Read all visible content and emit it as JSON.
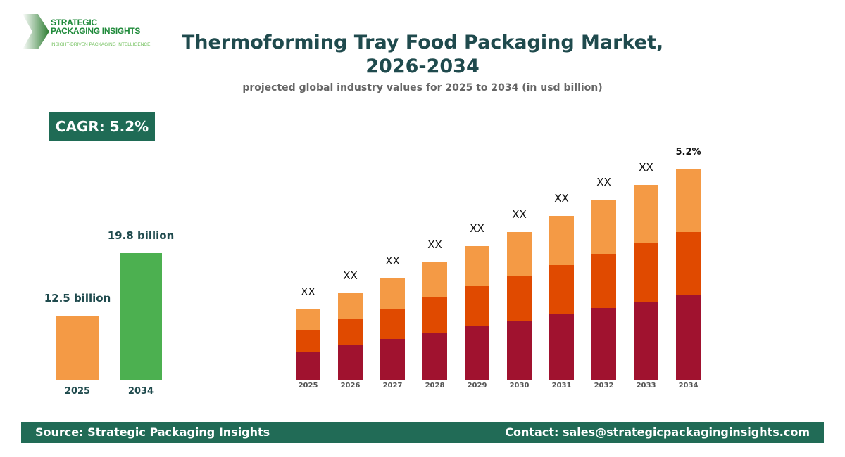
{
  "logo": {
    "line1": "STRATEGIC",
    "line2": "PACKAGING INSIGHTS",
    "tagline": "INSIGHT-DRIVEN PACKAGING INTELLIGENCE"
  },
  "header": {
    "title_line1": "Thermoforming Tray Food Packaging Market,",
    "title_line2": "2026-2034",
    "subtitle": "projected global industry values for 2025 to 2034 (in usd billion)"
  },
  "cagr_badge": "CAGR: 5.2%",
  "footer": {
    "source": "Source: Strategic Packaging Insights",
    "contact": "Contact: sales@strategicpackaginginsights.com"
  },
  "colors": {
    "segment_bottom": "#a0122f",
    "segment_middle": "#e04a00",
    "segment_top": "#f49a45",
    "bar_2025": "#f49a45",
    "bar_2034": "#4cb050",
    "brand": "#216b56"
  },
  "chart_data": [
    {
      "type": "bar",
      "categories": [
        "2025",
        "2034"
      ],
      "values": [
        12.5,
        19.8
      ],
      "data_labels": [
        "12.5 billion",
        "19.8 billion"
      ],
      "colors": [
        "#f49a45",
        "#4cb050"
      ]
    },
    {
      "type": "bar",
      "stacked": true,
      "categories": [
        "2025",
        "2026",
        "2027",
        "2028",
        "2029",
        "2030",
        "2031",
        "2032",
        "2033",
        "2034"
      ],
      "series": [
        {
          "values": [
            40,
            49,
            58,
            67,
            76,
            84,
            93,
            102,
            111,
            120
          ],
          "color": "#a0122f"
        },
        {
          "values": [
            30,
            37,
            43,
            50,
            57,
            63,
            70,
            77,
            83,
            90
          ],
          "color": "#e04a00"
        },
        {
          "values": [
            30,
            37,
            43,
            50,
            57,
            63,
            70,
            77,
            83,
            90
          ],
          "color": "#f49a45"
        }
      ],
      "data_labels": [
        "XX",
        "XX",
        "XX",
        "XX",
        "XX",
        "XX",
        "XX",
        "XX",
        "XX",
        "5.2%"
      ],
      "value_note": "relative heights; no value axis shown"
    }
  ]
}
